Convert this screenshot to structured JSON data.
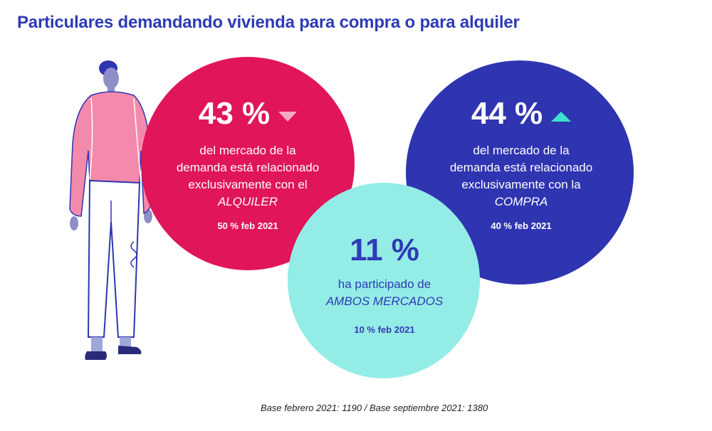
{
  "title": "Particulares demandando vivienda para compra o para alquiler",
  "alquiler": {
    "percent": "43 %",
    "desc_lines": [
      "del mercado de la",
      "demanda está relacionado",
      "exclusivamente con el"
    ],
    "highlight": "ALQUILER",
    "previous": "50 % feb 2021",
    "trend": "down",
    "color": "#e0155a"
  },
  "compra": {
    "percent": "44 %",
    "desc_lines": [
      "del mercado de la",
      "demanda está relacionado",
      "exclusivamente con la"
    ],
    "highlight": "COMPRA",
    "previous": "40 % feb 2021",
    "trend": "up",
    "color": "#2f35b0"
  },
  "ambos": {
    "percent": "11 %",
    "desc_line": "ha participado de",
    "highlight": "AMBOS MERCADOS",
    "previous": "10 % feb 2021",
    "color": "#94ece6"
  },
  "footnote": "Base febrero 2021: 1190 / Base septiembre 2021: 1380"
}
